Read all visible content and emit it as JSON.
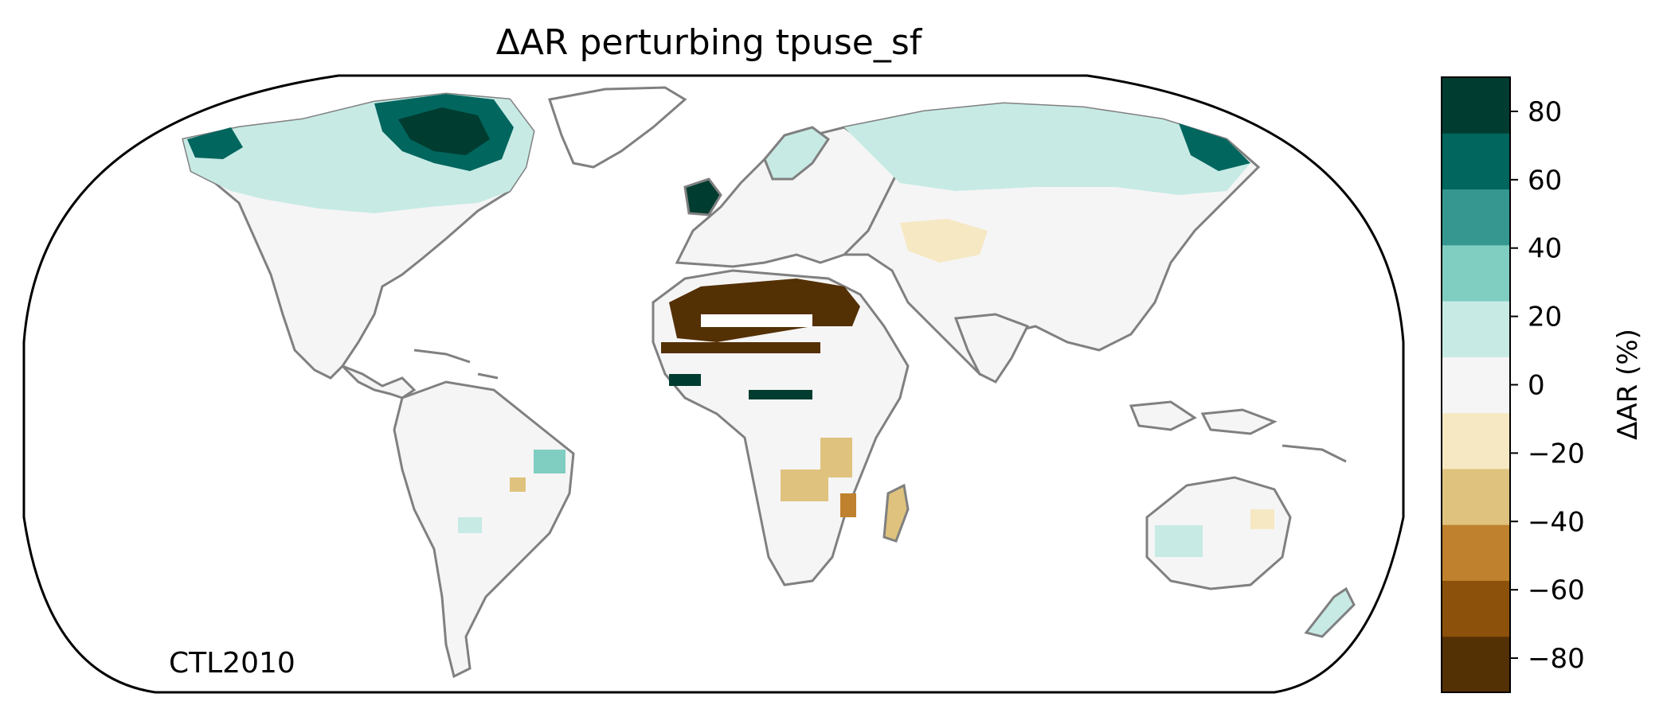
{
  "figure": {
    "title": "ΔAR perturbing tpuse_sf",
    "corner_label": "CTL2010"
  },
  "colorbar": {
    "label": "ΔAR (%)",
    "ticks": [
      "80",
      "60",
      "40",
      "20",
      "0",
      "−20",
      "−40",
      "−60",
      "−80"
    ],
    "tick_values": [
      80,
      60,
      40,
      20,
      0,
      -20,
      -40,
      -60,
      -80
    ],
    "range": [
      -90,
      90
    ],
    "bins": [
      {
        "from": -90,
        "to": -70,
        "color": "#543005"
      },
      {
        "from": -70,
        "to": -50,
        "color": "#8c510a"
      },
      {
        "from": -50,
        "to": -30,
        "color": "#bf812d"
      },
      {
        "from": -30,
        "to": -10,
        "color": "#dfc27d"
      },
      {
        "from": -10,
        "to": -10,
        "color": "#f6e8c3"
      },
      {
        "from": -10,
        "to": 10,
        "color": "#f5f5f5"
      },
      {
        "from": 10,
        "to": 30,
        "color": "#c7eae5"
      },
      {
        "from": 30,
        "to": 50,
        "color": "#80cdc1"
      },
      {
        "from": 50,
        "to": 70,
        "color": "#35978f"
      },
      {
        "from": 70,
        "to": 90,
        "color": "#01665e"
      }
    ]
  },
  "colors": {
    "strong_negative": "#543005",
    "moderate_negative": "#dfc27d",
    "neutral": "#f5f5f5",
    "mild_positive": "#c7eae5",
    "strong_positive": "#01665e",
    "darkest_positive": "#003c30",
    "coastline": "#808080",
    "borders": "#c8c8c8"
  }
}
